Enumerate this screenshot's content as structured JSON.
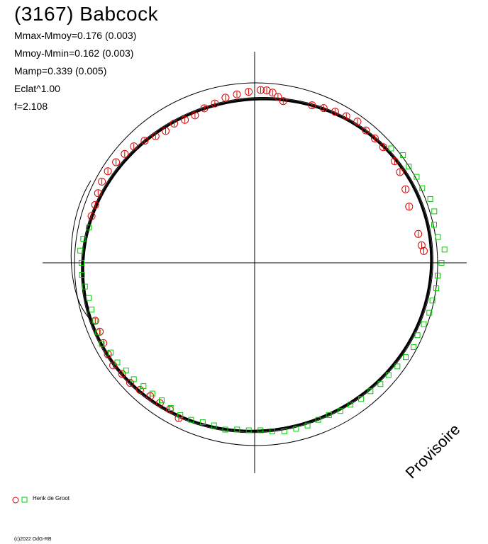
{
  "title": "(3167) Babcock",
  "stats": [
    "Mmax-Mmoy=0.176 (0.003)",
    "Mmoy-Mmin=0.162 (0.003)",
    "Mamp=0.339 (0.005)",
    "Eclat^1.00",
    "f=2.108"
  ],
  "watermark": "Provisoire",
  "legend": {
    "observer": "Henk de Groot"
  },
  "copyright": "(c)2022 OdG-RB",
  "colors": {
    "series_circles": "#dd0000",
    "series_squares": "#00cc00",
    "axes": "#000000"
  },
  "chart_data": {
    "type": "scatter",
    "description_type": "polar lightcurve plot",
    "grid": false,
    "legend_position": "bottom-left",
    "reference_circle_radius": 1.0,
    "series": [
      {
        "name": "Henk de Groot",
        "marker": "circle",
        "points_polar": [
          [
            80,
            0.95
          ],
          [
            82,
            0.97
          ],
          [
            84,
            0.99
          ],
          [
            86,
            1.0
          ],
          [
            88,
            1.0
          ],
          [
            92,
            0.99
          ],
          [
            96,
            0.98
          ],
          [
            100,
            0.97
          ],
          [
            104,
            0.95
          ],
          [
            108,
            0.94
          ],
          [
            112,
            0.92
          ],
          [
            116,
            0.92
          ],
          [
            120,
            0.93
          ],
          [
            124,
            0.92
          ],
          [
            128,
            0.93
          ],
          [
            132,
            0.95
          ],
          [
            136,
            0.97
          ],
          [
            140,
            0.98
          ],
          [
            144,
            0.99
          ],
          [
            148,
            1.0
          ],
          [
            152,
            1.0
          ],
          [
            156,
            0.99
          ],
          [
            160,
            0.98
          ],
          [
            164,
            0.98
          ],
          [
            70,
            0.97
          ],
          [
            66,
            0.98
          ],
          [
            62,
            0.99
          ],
          [
            58,
            1.0
          ],
          [
            54,
            1.01
          ],
          [
            50,
            1.0
          ],
          [
            46,
            1.0
          ],
          [
            42,
            1.0
          ],
          [
            36,
            1.0
          ],
          [
            32,
            0.99
          ],
          [
            26,
            0.97
          ],
          [
            20,
            0.95
          ],
          [
            10,
            0.96
          ],
          [
            6,
            0.97
          ],
          [
            4,
            0.98
          ],
          [
            200,
            0.98
          ],
          [
            204,
            0.98
          ],
          [
            208,
            0.99
          ],
          [
            212,
            1.0
          ],
          [
            216,
            1.01
          ],
          [
            220,
            1.0
          ],
          [
            224,
            1.0
          ],
          [
            228,
            0.99
          ],
          [
            232,
            0.98
          ],
          [
            236,
            0.98
          ],
          [
            240,
            0.98
          ],
          [
            244,
            1.0
          ]
        ]
      },
      {
        "name": "Henk de Groot",
        "marker": "square",
        "points_polar": [
          [
            40,
            1.03
          ],
          [
            36,
            1.06
          ],
          [
            32,
            1.05
          ],
          [
            28,
            1.06
          ],
          [
            24,
            1.06
          ],
          [
            20,
            1.08
          ],
          [
            16,
            1.08
          ],
          [
            12,
            1.06
          ],
          [
            8,
            1.07
          ],
          [
            4,
            1.1
          ],
          [
            0,
            1.08
          ],
          [
            -4,
            1.06
          ],
          [
            -8,
            1.06
          ],
          [
            -12,
            1.05
          ],
          [
            -16,
            1.05
          ],
          [
            -20,
            1.04
          ],
          [
            -24,
            1.03
          ],
          [
            -28,
            1.04
          ],
          [
            -32,
            1.03
          ],
          [
            -36,
            1.02
          ],
          [
            -40,
            1.01
          ],
          [
            -44,
            1.01
          ],
          [
            -48,
            1.0
          ],
          [
            -52,
            1.0
          ],
          [
            -56,
            0.99
          ],
          [
            -60,
            0.99
          ],
          [
            -64,
            0.98
          ],
          [
            -68,
            0.98
          ],
          [
            -72,
            0.99
          ],
          [
            -76,
            0.99
          ],
          [
            -80,
            0.99
          ],
          [
            -84,
            0.98
          ],
          [
            -88,
            0.97
          ],
          [
            -92,
            0.97
          ],
          [
            -96,
            0.97
          ],
          [
            -100,
            0.98
          ],
          [
            -104,
            0.97
          ],
          [
            -108,
            0.97
          ],
          [
            -112,
            0.98
          ],
          [
            -116,
            0.98
          ],
          [
            -120,
            0.97
          ],
          [
            -124,
            0.96
          ],
          [
            -128,
            0.96
          ],
          [
            -132,
            0.96
          ],
          [
            -136,
            0.97
          ],
          [
            -140,
            0.97
          ],
          [
            -144,
            0.98
          ],
          [
            -148,
            0.98
          ],
          [
            -152,
            1.0
          ],
          [
            -156,
            0.99
          ],
          [
            -160,
            0.98
          ],
          [
            -164,
            0.98
          ],
          [
            -168,
            0.98
          ],
          [
            -172,
            0.99
          ],
          [
            -176,
            1.0
          ],
          [
            180,
            1.0
          ],
          [
            176,
            1.01
          ],
          [
            172,
            1.0
          ],
          [
            168,
            0.98
          ]
        ]
      }
    ]
  }
}
